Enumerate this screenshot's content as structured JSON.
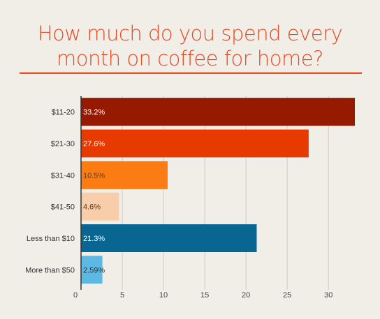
{
  "title": "How much do you spend every\nmonth on coffee for home?",
  "chart_data": {
    "type": "bar",
    "orientation": "horizontal",
    "title": "How much do you spend every month on coffee for home?",
    "categories": [
      "$11-20",
      "$21-30",
      "$31-40",
      "$41-50",
      "Less than $10",
      "More than $50"
    ],
    "values": [
      33.2,
      27.6,
      10.5,
      4.6,
      21.3,
      2.59
    ],
    "labels": [
      "33.2%",
      "27.6%",
      "10.5%",
      "4.6%",
      "21.3%",
      "2.59%"
    ],
    "colors": [
      "#961a00",
      "#e63a00",
      "#fb7c13",
      "#f8cda9",
      "#096692",
      "#5cb9e3"
    ],
    "label_colors": [
      "#ffffff",
      "#ffffff",
      "#5a3a1e",
      "#5a3a1e",
      "#ffffff",
      "#333333"
    ],
    "xlim": [
      0,
      33.2
    ],
    "xticks": [
      0,
      5,
      10,
      15,
      20,
      25,
      30
    ],
    "grid": true,
    "legend": "none"
  }
}
